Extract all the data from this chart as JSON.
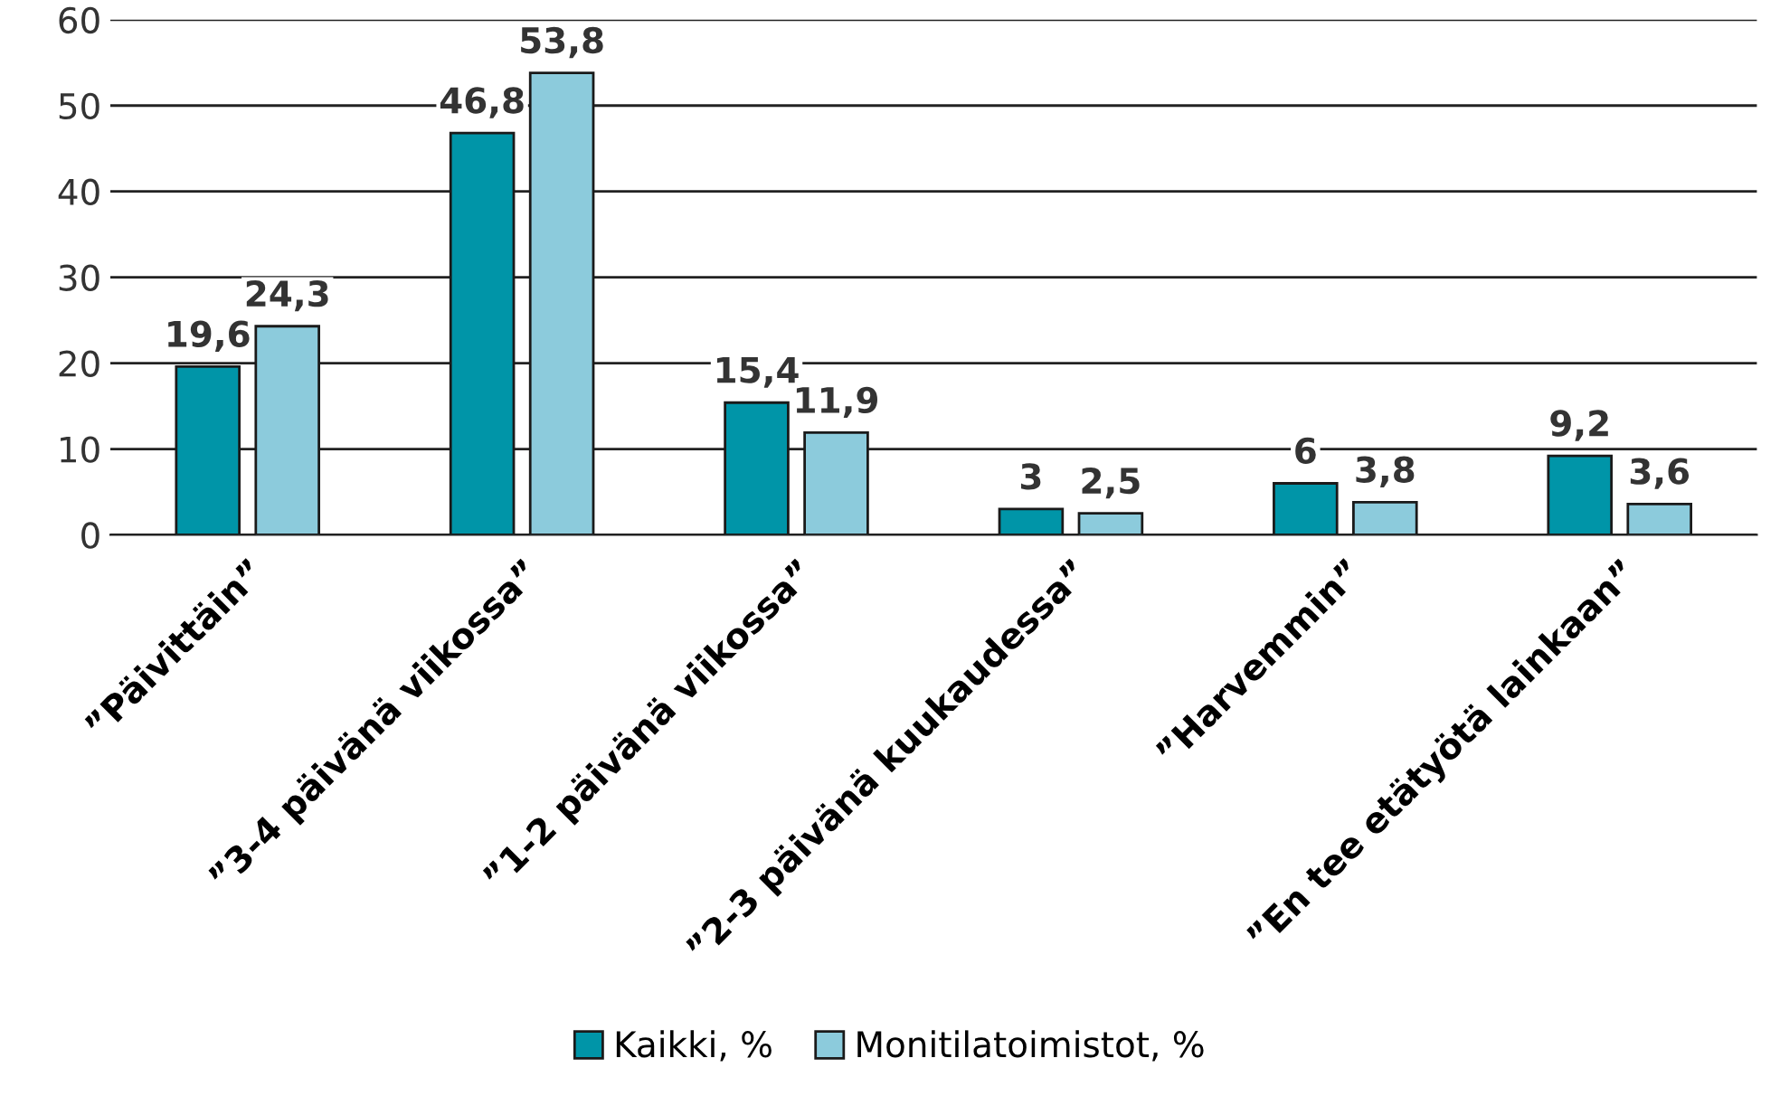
{
  "chart_data": {
    "type": "bar",
    "categories": [
      "”Päivittäin”",
      "”3-4 päivänä viikossa”",
      "”1-2 päivänä viikossa”",
      "”2-3 päivänä kuukaudessa”",
      "”Harvemmin”",
      "”En tee etätyötä lainkaan”"
    ],
    "series": [
      {
        "name": "Kaikki, %",
        "color": "#0095a8",
        "values": [
          19.6,
          46.8,
          15.4,
          3,
          6,
          9.2
        ],
        "value_labels": [
          "19,6",
          "46,8",
          "15,4",
          "3",
          "6",
          "9,2"
        ]
      },
      {
        "name": "Monitilatoimistot, %",
        "color": "#8ccbdc",
        "values": [
          24.3,
          53.8,
          11.9,
          2.5,
          3.8,
          3.6
        ],
        "value_labels": [
          "24,3",
          "53,8",
          "11,9",
          "2,5",
          "3,8",
          "3,6"
        ]
      }
    ],
    "ylim": [
      0,
      60
    ],
    "yticks": [
      0,
      10,
      20,
      30,
      40,
      50,
      60
    ],
    "grid": "y",
    "legend": "bottom"
  }
}
